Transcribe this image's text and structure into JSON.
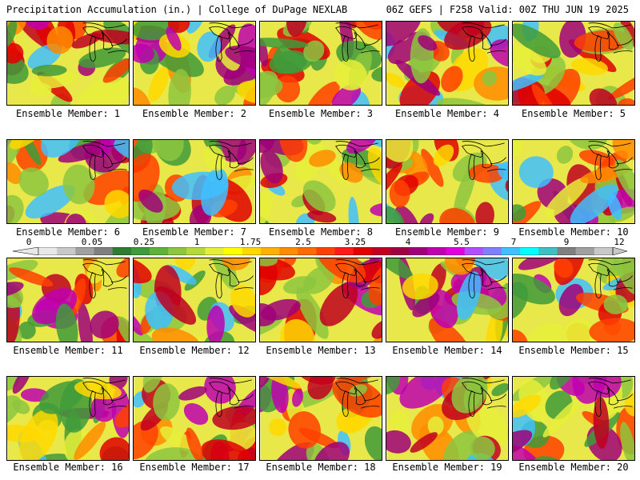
{
  "header": {
    "title": "Precipitation Accumulation (in.) | College of DuPage NEXLAB",
    "valid": "06Z GEFS | F258 Valid: 00Z THU JUN 19 2025"
  },
  "members": [
    "Ensemble Member: 1",
    "Ensemble Member: 2",
    "Ensemble Member: 3",
    "Ensemble Member: 4",
    "Ensemble Member: 5",
    "Ensemble Member: 6",
    "Ensemble Member: 7",
    "Ensemble Member: 8",
    "Ensemble Member: 9",
    "Ensemble Member: 10",
    "Ensemble Member: 11",
    "Ensemble Member: 12",
    "Ensemble Member: 13",
    "Ensemble Member: 14",
    "Ensemble Member: 15",
    "Ensemble Member: 16",
    "Ensemble Member: 17",
    "Ensemble Member: 18",
    "Ensemble Member: 19",
    "Ensemble Member: 20"
  ],
  "colorbar": {
    "labels": [
      "0",
      "0.05",
      "0.25",
      "1",
      "1.75",
      "2.5",
      "3.25",
      "4",
      "5.5",
      "7",
      "9",
      "12"
    ],
    "colors": [
      "#e8e8e8",
      "#c8c8c8",
      "#a0a0a0",
      "#808080",
      "#2e7d32",
      "#3f9b3a",
      "#5fb33a",
      "#8cc63f",
      "#b5d93a",
      "#e6ee3a",
      "#ffff00",
      "#ffd800",
      "#ffb000",
      "#ff8c00",
      "#ff6a00",
      "#ff4000",
      "#ff1a1a",
      "#e00000",
      "#c00020",
      "#a00040",
      "#a0007a",
      "#c000b0",
      "#e000e0",
      "#b050ff",
      "#8080ff",
      "#40c0ff",
      "#00ffff",
      "#40c0c0",
      "#808080",
      "#a0a0a0",
      "#c8c8c8"
    ]
  }
}
